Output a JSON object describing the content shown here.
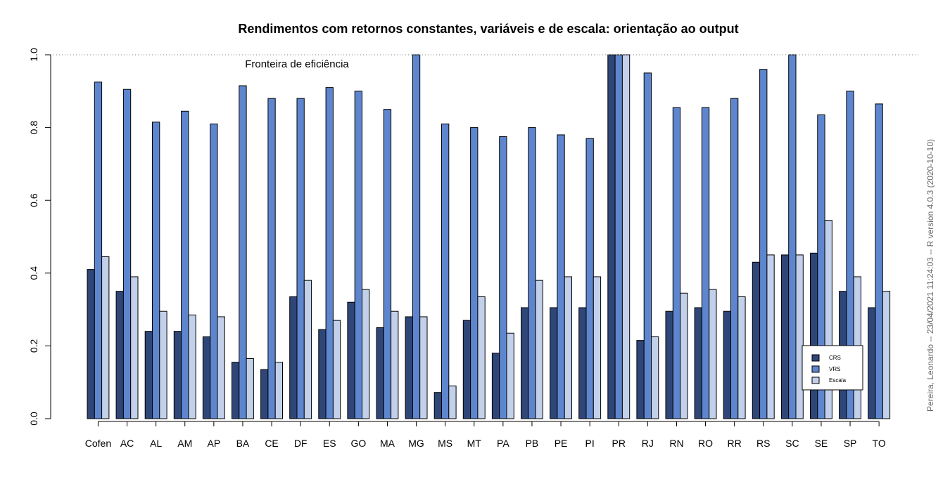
{
  "chart_data": {
    "type": "bar",
    "title": "Rendimentos com retornos constantes, variáveis e de escala: orientação ao output",
    "xlabel": "",
    "ylabel": "",
    "ylim": [
      0,
      1.0
    ],
    "yticks": [
      "0.0",
      "0.2",
      "0.4",
      "0.6",
      "0.8",
      "1.0"
    ],
    "grid": false,
    "reference_line": {
      "y": 1.0,
      "style": "dotted",
      "label": "Fronteira de eficiência"
    },
    "legend": {
      "placement": "bottom-right",
      "entries": [
        "CRS",
        "VRS",
        "Escala"
      ]
    },
    "categories": [
      "Cofen",
      "AC",
      "AL",
      "AM",
      "AP",
      "BA",
      "CE",
      "DF",
      "ES",
      "GO",
      "MA",
      "MG",
      "MS",
      "MT",
      "PA",
      "PB",
      "PE",
      "PI",
      "PR",
      "RJ",
      "RN",
      "RO",
      "RR",
      "RS",
      "SC",
      "SE",
      "SP",
      "TO"
    ],
    "series": [
      {
        "name": "CRS",
        "color": "#2f4678",
        "values": [
          0.41,
          0.35,
          0.24,
          0.24,
          0.225,
          0.155,
          0.135,
          0.335,
          0.245,
          0.32,
          0.25,
          0.28,
          0.072,
          0.27,
          0.18,
          0.305,
          0.305,
          0.305,
          1.0,
          0.215,
          0.295,
          0.305,
          0.295,
          0.43,
          0.45,
          0.455,
          0.35,
          0.305
        ]
      },
      {
        "name": "VRS",
        "color": "#5e86cf",
        "values": [
          0.925,
          0.905,
          0.815,
          0.845,
          0.81,
          0.915,
          0.88,
          0.88,
          0.91,
          0.9,
          0.85,
          1.0,
          0.81,
          0.8,
          0.775,
          0.8,
          0.78,
          0.77,
          1.0,
          0.95,
          0.855,
          0.855,
          0.88,
          0.96,
          1.0,
          0.835,
          0.9,
          0.865
        ]
      },
      {
        "name": "Escala",
        "color": "#c2d0ea",
        "values": [
          0.445,
          0.39,
          0.295,
          0.285,
          0.28,
          0.165,
          0.155,
          0.38,
          0.27,
          0.355,
          0.295,
          0.28,
          0.09,
          0.335,
          0.235,
          0.38,
          0.39,
          0.39,
          1.0,
          0.225,
          0.345,
          0.355,
          0.335,
          0.45,
          0.45,
          0.545,
          0.39,
          0.35
        ]
      }
    ],
    "side_note": "Pereira, Leonardo -- 23/04/2021 11:24:03 -- R version 4.0.3 (2020-10-10)"
  }
}
